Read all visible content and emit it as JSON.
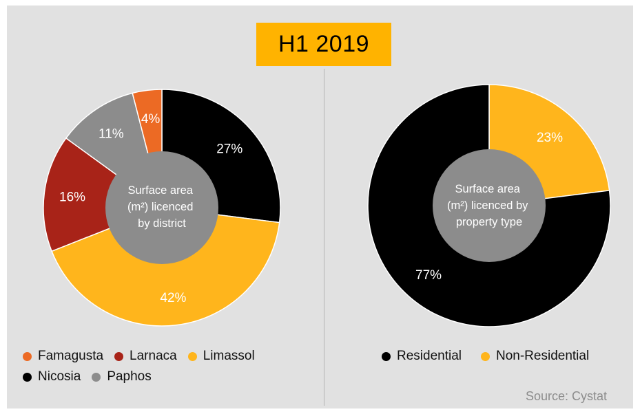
{
  "title": "H1 2019",
  "source": "Source: Cystat",
  "colors": {
    "Famagusta": "#ec6a24",
    "Larnaca": "#a82318",
    "Limassol": "#ffb51c",
    "Nicosia": "#000000",
    "Paphos": "#8c8c8c",
    "Residential": "#000000",
    "Non-Residential": "#ffb51c",
    "center": "#8c8c8c",
    "background": "#e1e1e1"
  },
  "chart_data": [
    {
      "type": "pie",
      "title": "Surface area (m²) licenced by district",
      "center_label": [
        "Surface area",
        "(m²) licenced",
        "by district"
      ],
      "categories": [
        "Nicosia",
        "Limassol",
        "Larnaca",
        "Paphos",
        "Famagusta"
      ],
      "values": [
        27,
        42,
        16,
        11,
        4
      ],
      "data_labels": [
        "27%",
        "42%",
        "16%",
        "11%",
        "4%"
      ],
      "legend": [
        "Famagusta",
        "Larnaca",
        "Limassol",
        "Nicosia",
        "Paphos"
      ]
    },
    {
      "type": "pie",
      "title": "Surface area (m²) licenced by property type",
      "center_label": [
        "Surface area",
        "(m²) licenced by",
        "property type"
      ],
      "categories": [
        "Non-Residential",
        "Residential"
      ],
      "values": [
        23,
        77
      ],
      "data_labels": [
        "23%",
        "77%"
      ],
      "legend": [
        "Residential",
        "Non-Residential"
      ]
    }
  ]
}
